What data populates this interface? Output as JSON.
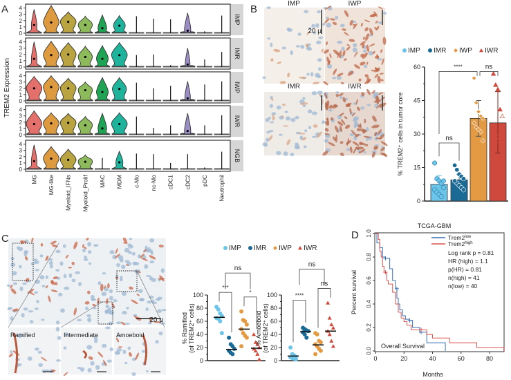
{
  "panel_labels": {
    "a": "A",
    "b": "B",
    "c": "C",
    "d": "D"
  },
  "colors": {
    "IMP": "#6cc4e8",
    "IMR": "#1a6a95",
    "IWP": "#e39a43",
    "IWR": "#cf4a3c"
  },
  "chart_data": [
    {
      "id": "A",
      "type": "violin",
      "ylabel": "TREM2 Expression",
      "ylim": [
        0,
        4.4
      ],
      "yticks": [
        "0",
        "1",
        "2",
        "3",
        "4"
      ],
      "categories": [
        "MG",
        "MG-like",
        "Myeloid_IFNs",
        "Myeloid_Prolif",
        "MAC",
        "MDM",
        "c-Mo",
        "nc-Mo",
        "cDC1",
        "cDC2",
        "pDC",
        "Neutrophil"
      ],
      "category_colors": [
        "#e3706b",
        "#dd9a3e",
        "#b9a441",
        "#8dba5a",
        "#1fa354",
        "#1fb39c",
        "#888",
        "#888",
        "#888",
        "#9b8ec4",
        "#888",
        "#888"
      ],
      "conditions": [
        {
          "name": "IMP",
          "max": [
            3.8,
            4.4,
            3.4,
            2.7,
            2.9,
            2.8,
            2.7,
            2.3,
            2.2,
            3.2,
            0.3,
            2.8
          ],
          "median": [
            1.3,
            1.7,
            1.8,
            1.3,
            0.8,
            1.2,
            0,
            0,
            0,
            0.4,
            0,
            0
          ],
          "width": [
            0.35,
            1,
            1,
            0.9,
            0.55,
            0.75,
            0,
            0,
            0,
            0.4,
            0,
            0
          ]
        },
        {
          "name": "IMR",
          "max": [
            4.0,
            4.1,
            3.9,
            3.3,
            3.4,
            3.9,
            1.9,
            2.0,
            0.3,
            3.0,
            1.2,
            2.4
          ],
          "median": [
            1.3,
            1.9,
            2.0,
            1.6,
            1.3,
            1.9,
            0,
            0,
            0,
            0.4,
            0,
            0
          ],
          "width": [
            0.35,
            1,
            1,
            0.9,
            0.75,
            1,
            0,
            0,
            0,
            0.3,
            0,
            0
          ]
        },
        {
          "name": "IWP",
          "max": [
            3.9,
            4.0,
            3.6,
            3.0,
            3.7,
            3.7,
            2.9,
            2.0,
            2.4,
            3.1,
            2.6,
            3.1
          ],
          "median": [
            2.0,
            2.2,
            2.0,
            1.7,
            1.4,
            1.9,
            0,
            0,
            0,
            0.4,
            0,
            0
          ],
          "width": [
            1,
            1,
            1,
            0.9,
            0.75,
            0.9,
            0,
            0,
            0,
            0.35,
            0,
            0
          ]
        },
        {
          "name": "IWR",
          "max": [
            3.8,
            3.5,
            3.4,
            2.9,
            3.4,
            3.5,
            2.9,
            1.1,
            1.5,
            3.4,
            1.5,
            3.1
          ],
          "median": [
            1.7,
            1.8,
            1.9,
            1.5,
            1.0,
            1.7,
            0,
            0,
            0,
            0.6,
            0,
            0
          ],
          "width": [
            1,
            1,
            1,
            0.9,
            0.55,
            1,
            0,
            0,
            0,
            0.4,
            0,
            0
          ]
        },
        {
          "name": "NGB",
          "max": [
            3.9,
            3.6,
            3.2,
            2.3,
            1.8,
            2.9,
            2.5,
            2.4,
            1.0,
            2.4,
            0.3,
            2.8
          ],
          "median": [
            1.3,
            1.7,
            1.5,
            1.2,
            0,
            1.1,
            0,
            0,
            0,
            0,
            0,
            0
          ],
          "width": [
            0.35,
            1,
            1,
            0.9,
            0,
            0.45,
            0,
            0,
            0,
            0,
            0,
            0
          ]
        }
      ]
    },
    {
      "id": "B",
      "type": "bar",
      "ylabel": "% TREM2⁺ cells in tumor core",
      "ylim": [
        0,
        60
      ],
      "yticks": [
        "0",
        "15",
        "30",
        "45",
        "60"
      ],
      "categories": [
        "IMP",
        "IMR",
        "IWP",
        "IWR"
      ],
      "markers": [
        "circle",
        "circle",
        "diamond",
        "triangle"
      ],
      "values": [
        7.5,
        9.5,
        37,
        35
      ],
      "error": [
        [
          4,
          11.5
        ],
        [
          7,
          12
        ],
        [
          29,
          45
        ],
        [
          21.5,
          49
        ]
      ],
      "points": [
        [
          17,
          10,
          9,
          8,
          6,
          5,
          4,
          3,
          2,
          9
        ],
        [
          16,
          14,
          12,
          11,
          10,
          9,
          8,
          7,
          6,
          5,
          9
        ],
        [
          55,
          44,
          40,
          38,
          37,
          35,
          33,
          32,
          31,
          27
        ],
        [
          57,
          52,
          50,
          41,
          38,
          33,
          30,
          27,
          18,
          17
        ]
      ],
      "legend": [
        "IMP",
        "IMR",
        "IWP",
        "IWR"
      ],
      "significance": [
        {
          "pair": [
            0,
            1
          ],
          "label": "ns"
        },
        {
          "pair": [
            0,
            2
          ],
          "label": "****"
        },
        {
          "pair": [
            2,
            3
          ],
          "label": "ns"
        }
      ]
    },
    {
      "id": "C1",
      "type": "scatter",
      "ylabel_line1": "% Ramified",
      "ylabel_line2": "(of TREM2⁺ cells)",
      "ylim": [
        0,
        100
      ],
      "yticks": [
        "0",
        "20",
        "40",
        "60",
        "80",
        "100"
      ],
      "categories": [
        "IMP",
        "IMR",
        "IWP",
        "IWR"
      ],
      "median": [
        66,
        17,
        48,
        19
      ],
      "points": [
        [
          82,
          78,
          72,
          68,
          65,
          64,
          60,
          42
        ],
        [
          35,
          25,
          22,
          18,
          15,
          12,
          10
        ],
        [
          75,
          62,
          60,
          55,
          48,
          42,
          38,
          35,
          22
        ],
        [
          40,
          28,
          25,
          20,
          18,
          15,
          10,
          2
        ]
      ],
      "significance": [
        {
          "pair": [
            0,
            1
          ],
          "label": "***"
        },
        {
          "pair": [
            2,
            3
          ],
          "label": "*"
        },
        {
          "pair": [
            0,
            2
          ],
          "label": "ns"
        }
      ]
    },
    {
      "id": "C2",
      "type": "scatter",
      "ylabel_line1": "% Amoeboid",
      "ylabel_line2": "(of TREM2⁺ cells)",
      "ylim": [
        0,
        100
      ],
      "yticks": [
        "0",
        "20",
        "40",
        "60",
        "80",
        "100"
      ],
      "categories": [
        "IMP",
        "IMR",
        "IWP",
        "IWR"
      ],
      "median": [
        7,
        44,
        24,
        45
      ],
      "points": [
        [
          20,
          10,
          8,
          6,
          5,
          4,
          3,
          2
        ],
        [
          50,
          48,
          46,
          45,
          43,
          40,
          35
        ],
        [
          42,
          40,
          30,
          28,
          25,
          22,
          18,
          15,
          10
        ],
        [
          88,
          65,
          55,
          50,
          45,
          40,
          30,
          22
        ]
      ],
      "significance": [
        {
          "pair": [
            0,
            1
          ],
          "label": "****"
        },
        {
          "pair": [
            2,
            3
          ],
          "label": "ns"
        },
        {
          "pair": [
            0,
            2
          ],
          "label": "ns"
        }
      ]
    },
    {
      "id": "D",
      "type": "line",
      "title": "TCGA-GBM",
      "xlabel": "Months",
      "ylabel": "Percent survival",
      "xlim": [
        0,
        90
      ],
      "ylim": [
        0,
        1
      ],
      "xticks": [
        "0",
        "20",
        "40",
        "60",
        "80"
      ],
      "yticks": [
        "0.0",
        "0.2",
        "0.4",
        "0.6",
        "0.8",
        "1.0"
      ],
      "annotation": "Overall Survival",
      "series": [
        {
          "name": "Trem2",
          "sup": "low",
          "color": "#3a6fb5",
          "steps": [
            [
              0,
              1
            ],
            [
              1,
              0.92
            ],
            [
              3,
              0.88
            ],
            [
              5,
              0.8
            ],
            [
              7,
              0.79
            ],
            [
              10,
              0.7
            ],
            [
              12,
              0.6
            ],
            [
              14,
              0.53
            ],
            [
              15,
              0.45
            ],
            [
              16,
              0.4
            ],
            [
              17,
              0.35
            ],
            [
              19,
              0.3
            ],
            [
              21,
              0.27
            ],
            [
              24,
              0.26
            ],
            [
              26,
              0.2
            ],
            [
              31,
              0.16
            ],
            [
              36,
              0.07
            ],
            [
              49,
              0.07
            ],
            [
              49,
              0
            ]
          ],
          "censored": [
            [
              7,
              0.79
            ],
            [
              15,
              0.53
            ],
            [
              24,
              0.26
            ],
            [
              32,
              0.16
            ]
          ]
        },
        {
          "name": "Trem2",
          "sup": "high",
          "color": "#d9534f",
          "steps": [
            [
              0,
              1
            ],
            [
              2,
              0.95
            ],
            [
              3,
              0.85
            ],
            [
              4,
              0.8
            ],
            [
              5,
              0.72
            ],
            [
              6,
              0.67
            ],
            [
              8,
              0.6
            ],
            [
              9,
              0.57
            ],
            [
              12,
              0.5
            ],
            [
              14,
              0.4
            ],
            [
              16,
              0.33
            ],
            [
              18,
              0.28
            ],
            [
              20,
              0.25
            ],
            [
              22,
              0.22
            ],
            [
              25,
              0.18
            ],
            [
              33,
              0.18
            ],
            [
              36,
              0.14
            ],
            [
              40,
              0.11
            ],
            [
              52,
              0.07
            ],
            [
              71,
              0.03
            ],
            [
              90,
              0.03
            ],
            [
              90,
              0
            ]
          ],
          "censored": [
            [
              7,
              0.67
            ],
            [
              32,
              0.18
            ]
          ]
        }
      ],
      "stats": [
        "Log rank p = 0.81",
        "HR (high) = 1.1",
        "p(HR) = 0.81",
        "n(high) = 41",
        "n(low) = 40"
      ]
    }
  ],
  "micrographs_b": {
    "labels": [
      "IMP",
      "IWP",
      "IMR",
      "IWR"
    ],
    "scale": "20 μ"
  },
  "micrographs_c": {
    "scale": "20 μ",
    "insets": [
      "Ramified",
      "Intermediate",
      "Amoeboid"
    ]
  }
}
